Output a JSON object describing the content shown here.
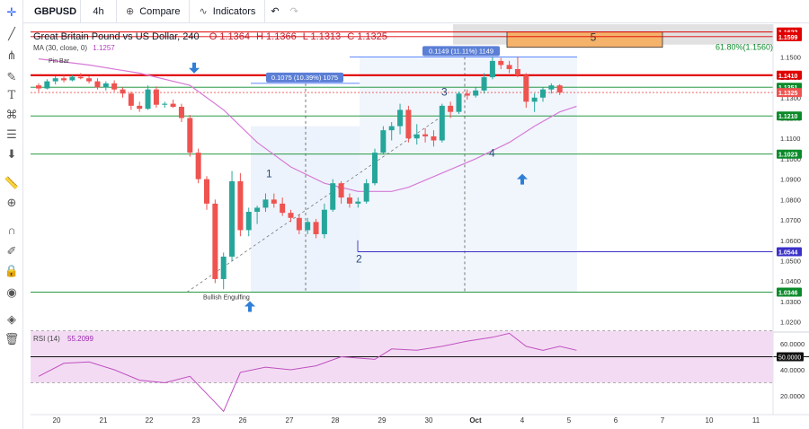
{
  "toolbar": {
    "symbol": "GBPUSD",
    "interval": "4h",
    "compare_label": "Compare",
    "indicators_label": "Indicators"
  },
  "legend": {
    "title": "Great Britain Pound vs US Dollar, 240",
    "open": "O 1.1364",
    "high": "H 1.1366",
    "low": "L 1.1313",
    "close": "C 1.1325",
    "ma_label": "MA (30, close, 0)",
    "ma_value": "1.1257",
    "rsi_label": "RSI (14)",
    "rsi_value": "55.2099"
  },
  "colors": {
    "up": "#26a69a",
    "down": "#ef5350",
    "ma": "#d67ad6",
    "rsi_line": "#c050c0",
    "rsi_band": "#f3dcf3",
    "resistance": "#e00000",
    "support": "#0b8a2a",
    "target": "#3b30c8",
    "fib_box": "#f5b26b",
    "measure_fill": "#e8f0fb"
  },
  "chart_data": {
    "type": "candlestick",
    "y_range": [
      1.015,
      1.166
    ],
    "x_labels": [
      "20",
      "21",
      "22",
      "23",
      "26",
      "27",
      "28",
      "29",
      "30",
      "Oct",
      "4",
      "5",
      "6",
      "7",
      "10",
      "11"
    ],
    "price_ticks": [
      "1.1500",
      "1.1400",
      "1.1300",
      "1.1200",
      "1.1100",
      "1.1000",
      "1.0900",
      "1.0800",
      "1.0700",
      "1.0600",
      "1.0500",
      "1.0400",
      "1.0300",
      "1.0200"
    ],
    "candles": [
      [
        1.136,
        1.137,
        1.133,
        1.1345
      ],
      [
        1.1345,
        1.139,
        1.134,
        1.138
      ],
      [
        1.138,
        1.1405,
        1.1365,
        1.1395
      ],
      [
        1.1395,
        1.141,
        1.1375,
        1.1385
      ],
      [
        1.1385,
        1.141,
        1.138,
        1.1402
      ],
      [
        1.1402,
        1.142,
        1.139,
        1.1395
      ],
      [
        1.1395,
        1.1405,
        1.137,
        1.138
      ],
      [
        1.138,
        1.1395,
        1.134,
        1.135
      ],
      [
        1.135,
        1.138,
        1.1335,
        1.137
      ],
      [
        1.137,
        1.1385,
        1.133,
        1.134
      ],
      [
        1.134,
        1.135,
        1.13,
        1.132
      ],
      [
        1.132,
        1.133,
        1.124,
        1.126
      ],
      [
        1.126,
        1.128,
        1.123,
        1.1245
      ],
      [
        1.1245,
        1.136,
        1.124,
        1.134
      ],
      [
        1.134,
        1.1355,
        1.125,
        1.1265
      ],
      [
        1.1265,
        1.128,
        1.125,
        1.127
      ],
      [
        1.127,
        1.129,
        1.125,
        1.1255
      ],
      [
        1.1255,
        1.127,
        1.118,
        1.12
      ],
      [
        1.12,
        1.1215,
        1.101,
        1.103
      ],
      [
        1.103,
        1.105,
        1.088,
        1.09
      ],
      [
        1.09,
        1.0915,
        1.075,
        1.078
      ],
      [
        1.078,
        1.08,
        1.039,
        1.041
      ],
      [
        1.041,
        1.054,
        1.036,
        1.052
      ],
      [
        1.052,
        1.094,
        1.05,
        1.089
      ],
      [
        1.089,
        1.093,
        1.062,
        1.065
      ],
      [
        1.065,
        1.076,
        1.062,
        1.074
      ],
      [
        1.074,
        1.077,
        1.068,
        1.076
      ],
      [
        1.076,
        1.083,
        1.074,
        1.08
      ],
      [
        1.08,
        1.083,
        1.076,
        1.078
      ],
      [
        1.078,
        1.081,
        1.072,
        1.0735
      ],
      [
        1.0735,
        1.075,
        1.069,
        1.071
      ],
      [
        1.071,
        1.0725,
        1.063,
        1.065
      ],
      [
        1.065,
        1.071,
        1.063,
        1.069
      ],
      [
        1.069,
        1.0705,
        1.061,
        1.063
      ],
      [
        1.063,
        1.078,
        1.061,
        1.075
      ],
      [
        1.075,
        1.09,
        1.074,
        1.088
      ],
      [
        1.088,
        1.089,
        1.078,
        1.081
      ],
      [
        1.081,
        1.083,
        1.076,
        1.078
      ],
      [
        1.078,
        1.081,
        1.076,
        1.079
      ],
      [
        1.079,
        1.09,
        1.078,
        1.088
      ],
      [
        1.088,
        1.105,
        1.087,
        1.103
      ],
      [
        1.103,
        1.116,
        1.102,
        1.114
      ],
      [
        1.114,
        1.118,
        1.109,
        1.116
      ],
      [
        1.116,
        1.127,
        1.112,
        1.124
      ],
      [
        1.124,
        1.126,
        1.108,
        1.11
      ],
      [
        1.11,
        1.117,
        1.107,
        1.112
      ],
      [
        1.112,
        1.115,
        1.108,
        1.111
      ],
      [
        1.111,
        1.114,
        1.106,
        1.109
      ],
      [
        1.109,
        1.127,
        1.108,
        1.126
      ],
      [
        1.126,
        1.128,
        1.12,
        1.123
      ],
      [
        1.123,
        1.133,
        1.122,
        1.132
      ],
      [
        1.132,
        1.134,
        1.129,
        1.131
      ],
      [
        1.131,
        1.135,
        1.13,
        1.1335
      ],
      [
        1.1335,
        1.142,
        1.132,
        1.14
      ],
      [
        1.14,
        1.15,
        1.139,
        1.148
      ],
      [
        1.148,
        1.1495,
        1.144,
        1.146
      ],
      [
        1.146,
        1.148,
        1.142,
        1.144
      ],
      [
        1.144,
        1.15,
        1.14,
        1.141
      ],
      [
        1.141,
        1.142,
        1.125,
        1.128
      ],
      [
        1.128,
        1.132,
        1.123,
        1.13
      ],
      [
        1.13,
        1.135,
        1.128,
        1.134
      ],
      [
        1.134,
        1.137,
        1.132,
        1.136
      ],
      [
        1.136,
        1.1366,
        1.1313,
        1.1325
      ]
    ],
    "ma_points": [
      [
        0,
        1.149
      ],
      [
        6,
        1.146
      ],
      [
        12,
        1.142
      ],
      [
        18,
        1.136
      ],
      [
        22,
        1.124
      ],
      [
        26,
        1.108
      ],
      [
        30,
        1.096
      ],
      [
        34,
        1.088
      ],
      [
        38,
        1.084
      ],
      [
        42,
        1.084
      ],
      [
        44,
        1.086
      ],
      [
        48,
        1.093
      ],
      [
        52,
        1.1
      ],
      [
        56,
        1.108
      ],
      [
        59,
        1.116
      ],
      [
        62,
        1.123
      ],
      [
        64,
        1.1257
      ]
    ],
    "rsi_points": [
      [
        0,
        35
      ],
      [
        3,
        45
      ],
      [
        6,
        46
      ],
      [
        9,
        40
      ],
      [
        12,
        32
      ],
      [
        15,
        30
      ],
      [
        18,
        35
      ],
      [
        21,
        15
      ],
      [
        22,
        8
      ],
      [
        24,
        38
      ],
      [
        27,
        42
      ],
      [
        30,
        40
      ],
      [
        33,
        43
      ],
      [
        36,
        50
      ],
      [
        40,
        48
      ],
      [
        42,
        56
      ],
      [
        45,
        55
      ],
      [
        48,
        58
      ],
      [
        51,
        62
      ],
      [
        54,
        65
      ],
      [
        56,
        68
      ],
      [
        58,
        58
      ],
      [
        60,
        55
      ],
      [
        62,
        58
      ],
      [
        64,
        55
      ]
    ],
    "rsi_ticks": [
      "60.0000",
      "40.0000",
      "20.0000"
    ],
    "levels": [
      {
        "price": 1.1622,
        "label": "1.1622",
        "color": "#e00000"
      },
      {
        "price": 1.1599,
        "label": "1.1599",
        "color": "#e00000"
      },
      {
        "price": 1.141,
        "label": "1.1410",
        "color": "#e00000"
      },
      {
        "price": 1.1351,
        "label": "1.1351",
        "color": "#0b8a2a"
      },
      {
        "price": 1.1325,
        "label": "1.1325",
        "color": "#ef5350"
      },
      {
        "price": 1.121,
        "label": "1.1210",
        "color": "#0b8a2a"
      },
      {
        "price": 1.1023,
        "label": "1.1023",
        "color": "#0b8a2a"
      },
      {
        "price": 1.0544,
        "label": "1.0544",
        "color": "#3b30c8"
      },
      {
        "price": 1.0346,
        "label": "1.0346",
        "color": "#0b8a2a"
      }
    ],
    "rsi_marker": {
      "value": 50,
      "label": "50.0000"
    },
    "annotations": {
      "fib_label": "61.80%(1.1560)",
      "fib_box_label": "5",
      "wave_labels": [
        "1",
        "2",
        "3",
        "4"
      ],
      "measure_left": "0.1075 (10.39%) 1075",
      "measure_right": "0.1149 (11.11%) 1149",
      "pin_bar": "Pin Bar",
      "bullish_engulfing": "Bullish Engulfing"
    }
  }
}
